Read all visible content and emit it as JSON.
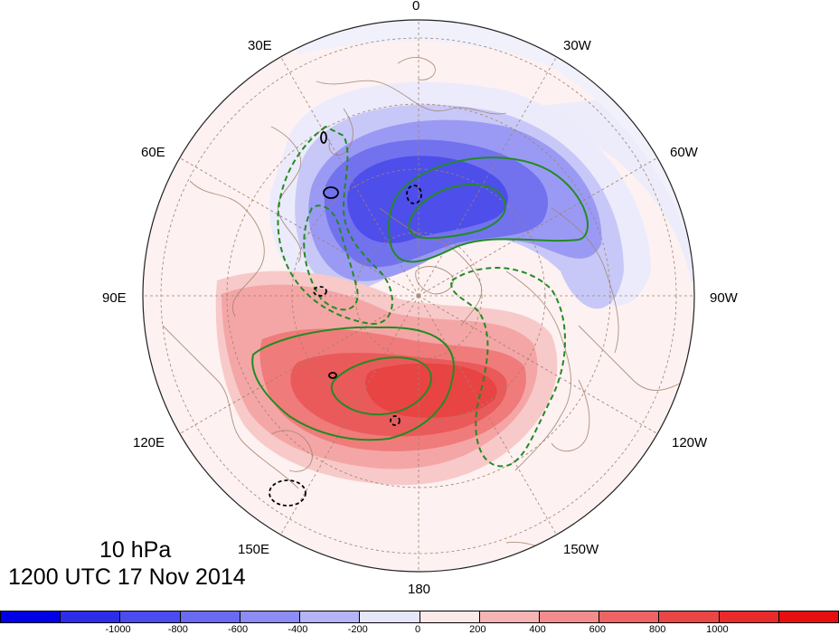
{
  "map": {
    "projection": "north polar stereographic",
    "longitude_labels": [
      "0",
      "30W",
      "60W",
      "90W",
      "120W",
      "150W",
      "180",
      "150E",
      "120E",
      "90E",
      "60E",
      "30E"
    ],
    "shading_colors": {
      "neg_strong": "#4646f0",
      "neg_mid": "#7d7df2",
      "neg_light": "#b4b4f7",
      "neg_faint": "#e6e6fb",
      "pos_faint": "#fbe8e8",
      "pos_light": "#f7b4b4",
      "pos_mid": "#f28484",
      "pos_strong": "#ed5757",
      "pos_max": "#e83a3a"
    },
    "contour_colors": {
      "green": "#228b22",
      "black": "#000000",
      "coast": "#a0826d",
      "grid": "#a0826d"
    }
  },
  "caption": {
    "level": "10 hPa",
    "time": "1200 UTC 17 Nov 2014"
  },
  "colorbar": {
    "colors": [
      "#0000e6",
      "#2d2de8",
      "#4b4bee",
      "#6a6af0",
      "#8c8cf4",
      "#b4b4f7",
      "#e6e6fb",
      "#fbe8e8",
      "#f7b4b4",
      "#f38c8c",
      "#ee6464",
      "#ea4646",
      "#e82a2a",
      "#e60e0e"
    ],
    "ticks": [
      "-1000",
      "-800",
      "-600",
      "-400",
      "-200",
      "0",
      "200",
      "400",
      "600",
      "800",
      "1000"
    ]
  }
}
